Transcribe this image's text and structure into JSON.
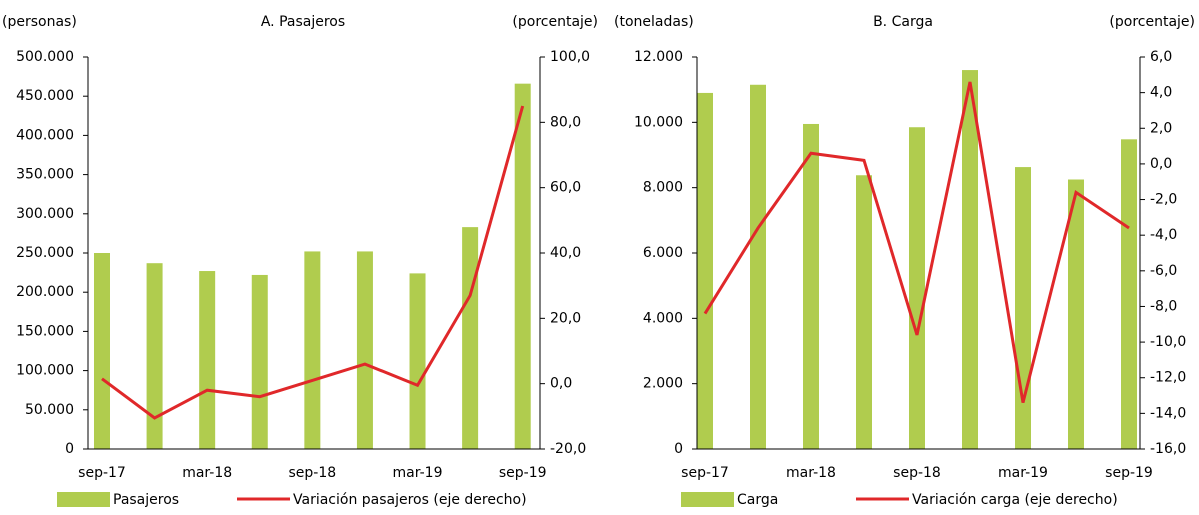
{
  "chart_data": [
    {
      "type": "bar",
      "title": "A. Pasajeros",
      "y_label": "(personas)",
      "y2_label": "(porcentaje)",
      "categories": [
        "sep-17",
        null,
        "mar-18",
        null,
        "sep-18",
        null,
        "mar-19",
        null,
        "sep-19"
      ],
      "series": [
        {
          "name": "Pasajeros",
          "type": "bar",
          "color": "#b0cc4e",
          "values": [
            250000,
            237000,
            227000,
            222000,
            252000,
            252000,
            224000,
            283000,
            466000
          ]
        },
        {
          "name": "Variación pasajeros (eje derecho)",
          "type": "line",
          "axis": "y2",
          "color": "#e0282a",
          "values": [
            1.5,
            -10.5,
            -2,
            -4,
            1,
            6,
            -0.5,
            27,
            85
          ]
        }
      ],
      "ylim": [
        0,
        500000
      ],
      "yticks": [
        0,
        {
          "value": 50000,
          "label": "50.000"
        },
        {
          "value": 100000,
          "label": "100.000"
        },
        {
          "value": 150000,
          "label": "150.000"
        },
        {
          "value": 200000,
          "label": "200.000"
        },
        {
          "value": 250000,
          "label": "250.000"
        },
        {
          "value": 300000,
          "label": "300.000"
        },
        {
          "value": 350000,
          "label": "350.000"
        },
        {
          "value": 400000,
          "label": "400.000"
        },
        {
          "value": 450000,
          "label": "450.000"
        },
        {
          "value": 500000,
          "label": "500.000"
        }
      ],
      "y2lim": [
        -20,
        100
      ],
      "y2ticks": [
        {
          "value": -20,
          "label": "-20,0"
        },
        {
          "value": 0,
          "label": "0,0"
        },
        {
          "value": 20,
          "label": "20,0"
        },
        {
          "value": 40,
          "label": "40,0"
        },
        {
          "value": 60,
          "label": "60,0"
        },
        {
          "value": 80,
          "label": "80,0"
        },
        {
          "value": 100,
          "label": "100,0"
        }
      ]
    },
    {
      "type": "bar",
      "title": "B. Carga",
      "y_label": "(toneladas)",
      "y2_label": "(porcentaje)",
      "categories": [
        "sep-17",
        null,
        "mar-18",
        null,
        "sep-18",
        null,
        "mar-19",
        null,
        "sep-19"
      ],
      "series": [
        {
          "name": "Carga",
          "type": "bar",
          "color": "#b0cc4e",
          "values": [
            10900,
            11150,
            9950,
            8380,
            9850,
            11600,
            8630,
            8250,
            9480
          ]
        },
        {
          "name": "Variación carga (eje derecho)",
          "type": "line",
          "axis": "y2",
          "color": "#e0282a",
          "values": [
            -8.4,
            -3.6,
            0.6,
            0.2,
            -9.6,
            4.6,
            -13.4,
            -1.6,
            -3.6
          ]
        }
      ],
      "ylim": [
        0,
        12000
      ],
      "yticks": [
        0,
        {
          "value": 2000,
          "label": "2.000"
        },
        {
          "value": 4000,
          "label": "4.000"
        },
        {
          "value": 6000,
          "label": "6.000"
        },
        {
          "value": 8000,
          "label": "8.000"
        },
        {
          "value": 10000,
          "label": "10.000"
        },
        {
          "value": 12000,
          "label": "12.000"
        }
      ],
      "y2lim": [
        -16,
        6
      ],
      "y2ticks": [
        {
          "value": -16,
          "label": "-16,0"
        },
        {
          "value": -14,
          "label": "-14,0"
        },
        {
          "value": -12,
          "label": "-12,0"
        },
        {
          "value": -10,
          "label": "-10,0"
        },
        {
          "value": -8,
          "label": "-8,0"
        },
        {
          "value": -6,
          "label": "-6,0"
        },
        {
          "value": -4,
          "label": "-4,0"
        },
        {
          "value": -2,
          "label": "-2,0"
        },
        {
          "value": 0,
          "label": "0,0"
        },
        {
          "value": 2,
          "label": "2,0"
        },
        {
          "value": 4,
          "label": "4,0"
        },
        {
          "value": 6,
          "label": "6,0"
        }
      ]
    }
  ]
}
